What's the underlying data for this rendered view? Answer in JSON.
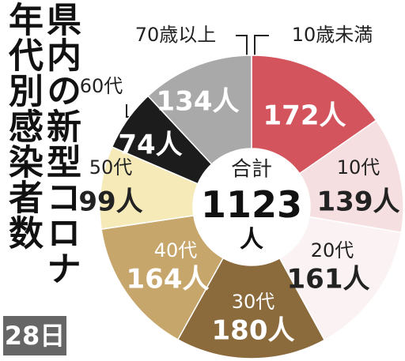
{
  "chart_data": {
    "type": "donut",
    "title": "県内の新型コロナ年代別感染者数",
    "categories": [
      "10歳未満",
      "10代",
      "20代",
      "30代",
      "40代",
      "50代",
      "60代",
      "70歳以上"
    ],
    "values": [
      172,
      139,
      161,
      180,
      164,
      99,
      74,
      134
    ],
    "value_labels": [
      "172人",
      "139人",
      "161人",
      "180人",
      "164人",
      "99人",
      "74人",
      "134人"
    ],
    "colors": [
      "#d4545d",
      "#f6dfe0",
      "#fbf3f3",
      "#8b6a3c",
      "#c7a66c",
      "#f5eab8",
      "#1c1c1c",
      "#a9a9a9"
    ],
    "center_title": "合計",
    "total": 1123,
    "total_label": "1123人",
    "date": "28日"
  }
}
